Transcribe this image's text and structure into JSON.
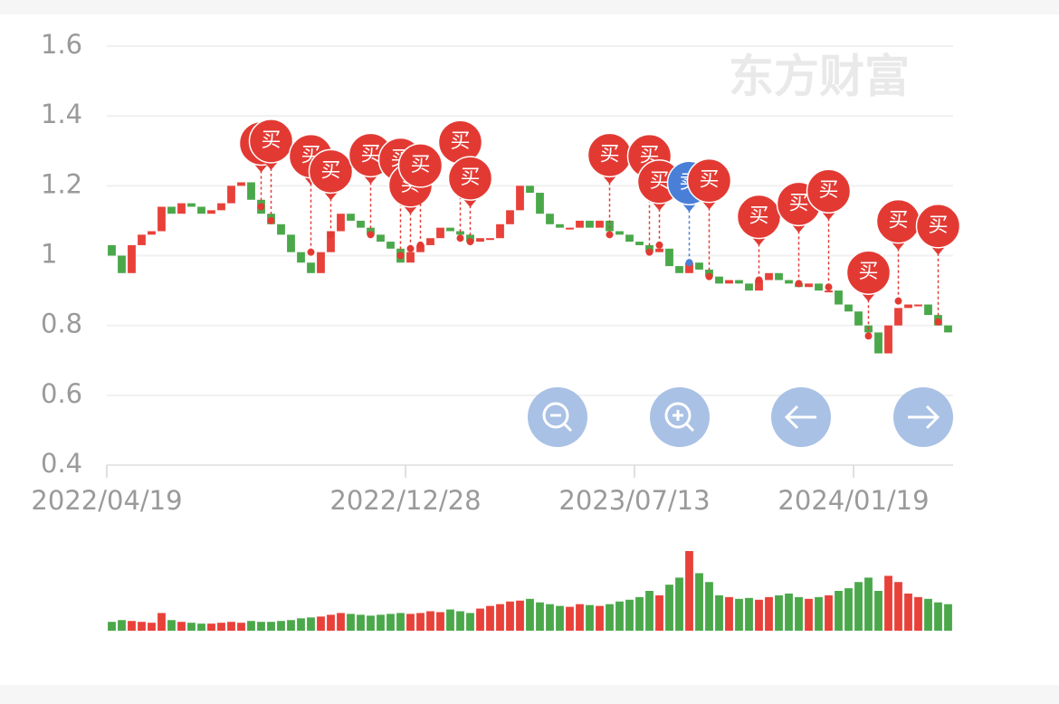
{
  "chart_data": {
    "type": "candlestick",
    "watermark": "东方财富",
    "ylim": [
      0.4,
      1.6
    ],
    "yticks": [
      {
        "value": 0.4,
        "label": "0.4"
      },
      {
        "value": 0.6,
        "label": "0.6"
      },
      {
        "value": 0.8,
        "label": "0.8"
      },
      1,
      {
        "value": 1.2,
        "label": "1.2"
      },
      {
        "value": 1.4,
        "label": "1.4"
      },
      {
        "value": 1.6,
        "label": "1.6"
      }
    ],
    "xlim": [
      0,
      85
    ],
    "xticks": [
      {
        "value": 0,
        "label": "2022/04/19"
      },
      {
        "value": 30,
        "label": "2022/12/28"
      },
      {
        "value": 53,
        "label": "2023/07/13"
      },
      {
        "value": 75,
        "label": "2024/01/19"
      }
    ],
    "grid": true,
    "up_color": "#e8413a",
    "down_color": "#4aa84a",
    "open": [
      1.03,
      1.0,
      0.95,
      1.03,
      1.06,
      1.07,
      1.14,
      1.12,
      1.15,
      1.14,
      1.12,
      1.13,
      1.15,
      1.2,
      1.21,
      1.16,
      1.12,
      1.09,
      1.06,
      1.01,
      0.98,
      0.95,
      1.01,
      1.07,
      1.12,
      1.1,
      1.08,
      1.06,
      1.04,
      1.02,
      0.98,
      1.01,
      1.03,
      1.05,
      1.08,
      1.07,
      1.06,
      1.04,
      1.05,
      1.05,
      1.09,
      1.13,
      1.2,
      1.18,
      1.12,
      1.09,
      1.08,
      1.08,
      1.1,
      1.08,
      1.1,
      1.07,
      1.06,
      1.04,
      1.03,
      1.01,
      1.02,
      0.97,
      0.95,
      0.98,
      0.96,
      0.94,
      0.92,
      0.93,
      0.92,
      0.9,
      0.93,
      0.95,
      0.93,
      0.92,
      0.91,
      0.92,
      0.9,
      0.9,
      0.86,
      0.84,
      0.8,
      0.78,
      0.72,
      0.8,
      0.85,
      0.86,
      0.86,
      0.83,
      0.8
    ],
    "close": [
      1.0,
      0.95,
      1.03,
      1.06,
      1.07,
      1.14,
      1.12,
      1.15,
      1.14,
      1.12,
      1.13,
      1.15,
      1.2,
      1.21,
      1.16,
      1.12,
      1.09,
      1.06,
      1.01,
      0.98,
      0.95,
      1.01,
      1.07,
      1.12,
      1.1,
      1.08,
      1.06,
      1.04,
      1.02,
      0.98,
      1.01,
      1.03,
      1.05,
      1.08,
      1.07,
      1.06,
      1.04,
      1.05,
      1.05,
      1.09,
      1.13,
      1.2,
      1.18,
      1.12,
      1.09,
      1.08,
      1.08,
      1.1,
      1.08,
      1.1,
      1.07,
      1.06,
      1.04,
      1.03,
      1.01,
      1.02,
      0.97,
      0.95,
      0.98,
      0.96,
      0.94,
      0.92,
      0.93,
      0.92,
      0.9,
      0.93,
      0.95,
      0.93,
      0.92,
      0.91,
      0.92,
      0.9,
      0.9,
      0.86,
      0.84,
      0.8,
      0.78,
      0.72,
      0.8,
      0.85,
      0.86,
      0.86,
      0.83,
      0.8,
      0.78
    ],
    "volume": [
      10,
      12,
      11,
      10,
      9,
      20,
      12,
      10,
      9,
      8,
      8,
      9,
      10,
      9,
      11,
      10,
      10,
      11,
      12,
      14,
      15,
      16,
      18,
      20,
      19,
      18,
      17,
      18,
      19,
      20,
      19,
      20,
      22,
      21,
      24,
      22,
      20,
      25,
      28,
      30,
      33,
      34,
      36,
      32,
      30,
      28,
      27,
      30,
      29,
      28,
      30,
      33,
      35,
      38,
      45,
      40,
      52,
      60,
      90,
      65,
      55,
      40,
      38,
      36,
      37,
      35,
      38,
      40,
      42,
      38,
      36,
      38,
      40,
      45,
      48,
      55,
      60,
      45,
      62,
      55,
      42,
      38,
      36,
      32,
      30
    ],
    "signals": [
      {
        "index": 15,
        "price": 1.14,
        "label": "买"
      },
      {
        "index": 16,
        "price": 1.1,
        "label": "买"
      },
      {
        "index": 20,
        "price": 1.01,
        "label": "买"
      },
      {
        "index": 22,
        "price": 1.06,
        "label": "买"
      },
      {
        "index": 26,
        "price": 1.06,
        "label": "买"
      },
      {
        "index": 29,
        "price": 1.0,
        "label": "买"
      },
      {
        "index": 30,
        "price": 1.02,
        "label": "买"
      },
      {
        "index": 31,
        "price": 1.03,
        "label": "买"
      },
      {
        "index": 35,
        "price": 1.05,
        "label": "买"
      },
      {
        "index": 36,
        "price": 1.04,
        "label": "买"
      },
      {
        "index": 50,
        "price": 1.06,
        "label": "买"
      },
      {
        "index": 54,
        "price": 1.01,
        "label": "买"
      },
      {
        "index": 55,
        "price": 1.03,
        "label": "买"
      },
      {
        "index": 58,
        "price": 0.98,
        "label": "卖"
      },
      {
        "index": 60,
        "price": 0.94,
        "label": "买"
      },
      {
        "index": 65,
        "price": 0.93,
        "label": "买"
      },
      {
        "index": 69,
        "price": 0.92,
        "label": "买"
      },
      {
        "index": 72,
        "price": 0.91,
        "label": "买"
      },
      {
        "index": 76,
        "price": 0.77,
        "label": "买"
      },
      {
        "index": 79,
        "price": 0.87,
        "label": "买"
      },
      {
        "index": 83,
        "price": 0.81,
        "label": "买"
      }
    ]
  }
}
